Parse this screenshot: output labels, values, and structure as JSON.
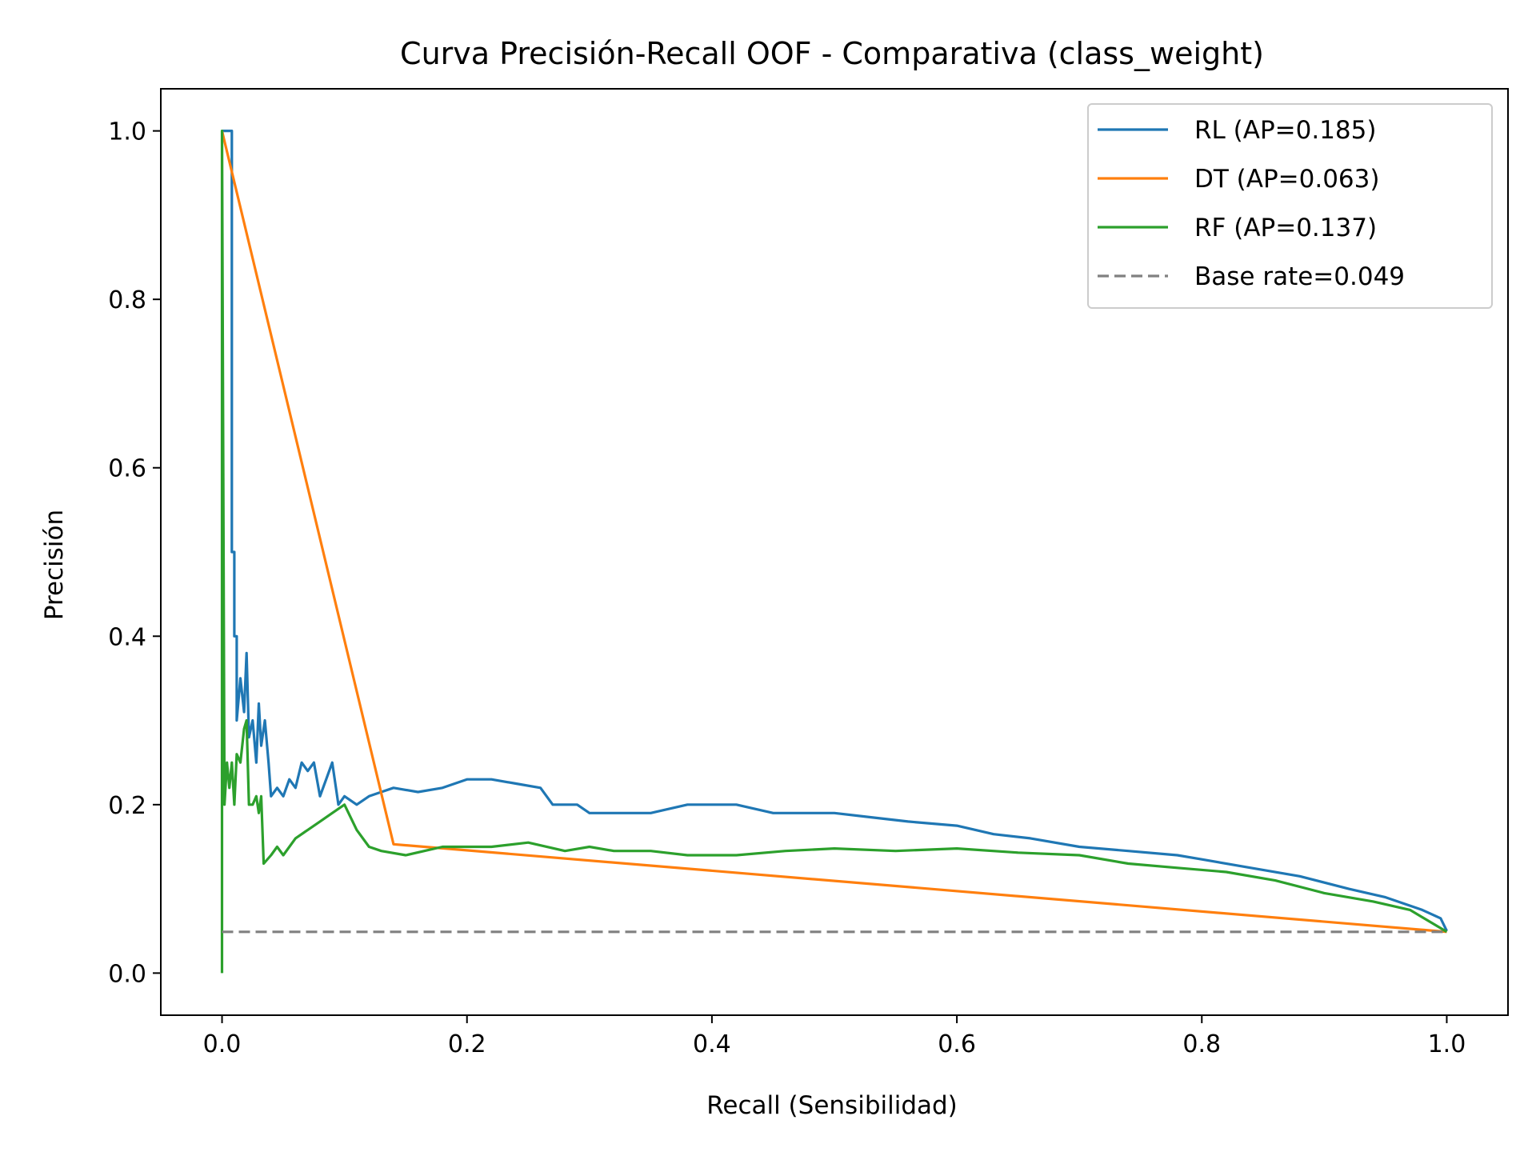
{
  "chart_data": {
    "type": "line",
    "title": "Curva Precisión-Recall OOF - Comparativa (class_weight)",
    "xlabel": "Recall (Sensibilidad)",
    "ylabel": "Precisión",
    "xlim": [
      -0.05,
      1.05
    ],
    "ylim": [
      -0.05,
      1.05
    ],
    "xticks": [
      0.0,
      0.2,
      0.4,
      0.6,
      0.8,
      1.0
    ],
    "yticks": [
      0.0,
      0.2,
      0.4,
      0.6,
      0.8,
      1.0
    ],
    "xtick_labels": [
      "0.0",
      "0.2",
      "0.4",
      "0.6",
      "0.8",
      "1.0"
    ],
    "ytick_labels": [
      "0.0",
      "0.2",
      "0.4",
      "0.6",
      "0.8",
      "1.0"
    ],
    "grid": false,
    "legend_position": "top-right",
    "series": [
      {
        "name": "RL (AP=0.185)",
        "color": "#1f77b4",
        "style": "solid",
        "points": [
          [
            0.0,
            1.0
          ],
          [
            0.008,
            1.0
          ],
          [
            0.008,
            0.5
          ],
          [
            0.01,
            0.5
          ],
          [
            0.01,
            0.4
          ],
          [
            0.012,
            0.4
          ],
          [
            0.012,
            0.3
          ],
          [
            0.015,
            0.35
          ],
          [
            0.018,
            0.31
          ],
          [
            0.02,
            0.38
          ],
          [
            0.022,
            0.28
          ],
          [
            0.025,
            0.3
          ],
          [
            0.028,
            0.25
          ],
          [
            0.03,
            0.32
          ],
          [
            0.032,
            0.27
          ],
          [
            0.035,
            0.3
          ],
          [
            0.038,
            0.25
          ],
          [
            0.04,
            0.21
          ],
          [
            0.045,
            0.22
          ],
          [
            0.05,
            0.21
          ],
          [
            0.055,
            0.23
          ],
          [
            0.06,
            0.22
          ],
          [
            0.065,
            0.25
          ],
          [
            0.07,
            0.24
          ],
          [
            0.075,
            0.25
          ],
          [
            0.08,
            0.21
          ],
          [
            0.085,
            0.23
          ],
          [
            0.09,
            0.25
          ],
          [
            0.095,
            0.2
          ],
          [
            0.1,
            0.21
          ],
          [
            0.11,
            0.2
          ],
          [
            0.12,
            0.21
          ],
          [
            0.13,
            0.215
          ],
          [
            0.14,
            0.22
          ],
          [
            0.16,
            0.215
          ],
          [
            0.18,
            0.22
          ],
          [
            0.2,
            0.23
          ],
          [
            0.22,
            0.23
          ],
          [
            0.24,
            0.225
          ],
          [
            0.26,
            0.22
          ],
          [
            0.27,
            0.2
          ],
          [
            0.29,
            0.2
          ],
          [
            0.3,
            0.19
          ],
          [
            0.35,
            0.19
          ],
          [
            0.38,
            0.2
          ],
          [
            0.42,
            0.2
          ],
          [
            0.45,
            0.19
          ],
          [
            0.5,
            0.19
          ],
          [
            0.53,
            0.185
          ],
          [
            0.56,
            0.18
          ],
          [
            0.6,
            0.175
          ],
          [
            0.63,
            0.165
          ],
          [
            0.66,
            0.16
          ],
          [
            0.7,
            0.15
          ],
          [
            0.74,
            0.145
          ],
          [
            0.78,
            0.14
          ],
          [
            0.8,
            0.135
          ],
          [
            0.84,
            0.125
          ],
          [
            0.88,
            0.115
          ],
          [
            0.92,
            0.1
          ],
          [
            0.95,
            0.09
          ],
          [
            0.98,
            0.075
          ],
          [
            0.995,
            0.065
          ],
          [
            1.0,
            0.05
          ]
        ]
      },
      {
        "name": "DT (AP=0.063)",
        "color": "#ff7f0e",
        "style": "solid",
        "points": [
          [
            0.0,
            1.0
          ],
          [
            0.14,
            0.153
          ],
          [
            1.0,
            0.049
          ]
        ]
      },
      {
        "name": "RF (AP=0.137)",
        "color": "#2ca02c",
        "style": "solid",
        "points": [
          [
            0.0,
            0.0
          ],
          [
            0.0,
            1.0
          ],
          [
            0.002,
            0.2
          ],
          [
            0.004,
            0.25
          ],
          [
            0.006,
            0.22
          ],
          [
            0.008,
            0.25
          ],
          [
            0.01,
            0.2
          ],
          [
            0.012,
            0.26
          ],
          [
            0.015,
            0.25
          ],
          [
            0.018,
            0.29
          ],
          [
            0.02,
            0.3
          ],
          [
            0.022,
            0.2
          ],
          [
            0.025,
            0.2
          ],
          [
            0.028,
            0.21
          ],
          [
            0.03,
            0.19
          ],
          [
            0.032,
            0.21
          ],
          [
            0.034,
            0.13
          ],
          [
            0.04,
            0.14
          ],
          [
            0.045,
            0.15
          ],
          [
            0.05,
            0.14
          ],
          [
            0.06,
            0.16
          ],
          [
            0.07,
            0.17
          ],
          [
            0.08,
            0.18
          ],
          [
            0.09,
            0.19
          ],
          [
            0.1,
            0.2
          ],
          [
            0.11,
            0.17
          ],
          [
            0.12,
            0.15
          ],
          [
            0.13,
            0.145
          ],
          [
            0.15,
            0.14
          ],
          [
            0.18,
            0.15
          ],
          [
            0.22,
            0.15
          ],
          [
            0.25,
            0.155
          ],
          [
            0.28,
            0.145
          ],
          [
            0.3,
            0.15
          ],
          [
            0.32,
            0.145
          ],
          [
            0.35,
            0.145
          ],
          [
            0.38,
            0.14
          ],
          [
            0.42,
            0.14
          ],
          [
            0.46,
            0.145
          ],
          [
            0.5,
            0.148
          ],
          [
            0.55,
            0.145
          ],
          [
            0.6,
            0.148
          ],
          [
            0.65,
            0.143
          ],
          [
            0.7,
            0.14
          ],
          [
            0.74,
            0.13
          ],
          [
            0.78,
            0.125
          ],
          [
            0.82,
            0.12
          ],
          [
            0.86,
            0.11
          ],
          [
            0.9,
            0.095
          ],
          [
            0.94,
            0.085
          ],
          [
            0.97,
            0.075
          ],
          [
            1.0,
            0.049
          ]
        ]
      },
      {
        "name": "Base rate=0.049",
        "color": "#808080",
        "style": "dashed",
        "points": [
          [
            0.0,
            0.049
          ],
          [
            1.0,
            0.049
          ]
        ]
      }
    ]
  }
}
